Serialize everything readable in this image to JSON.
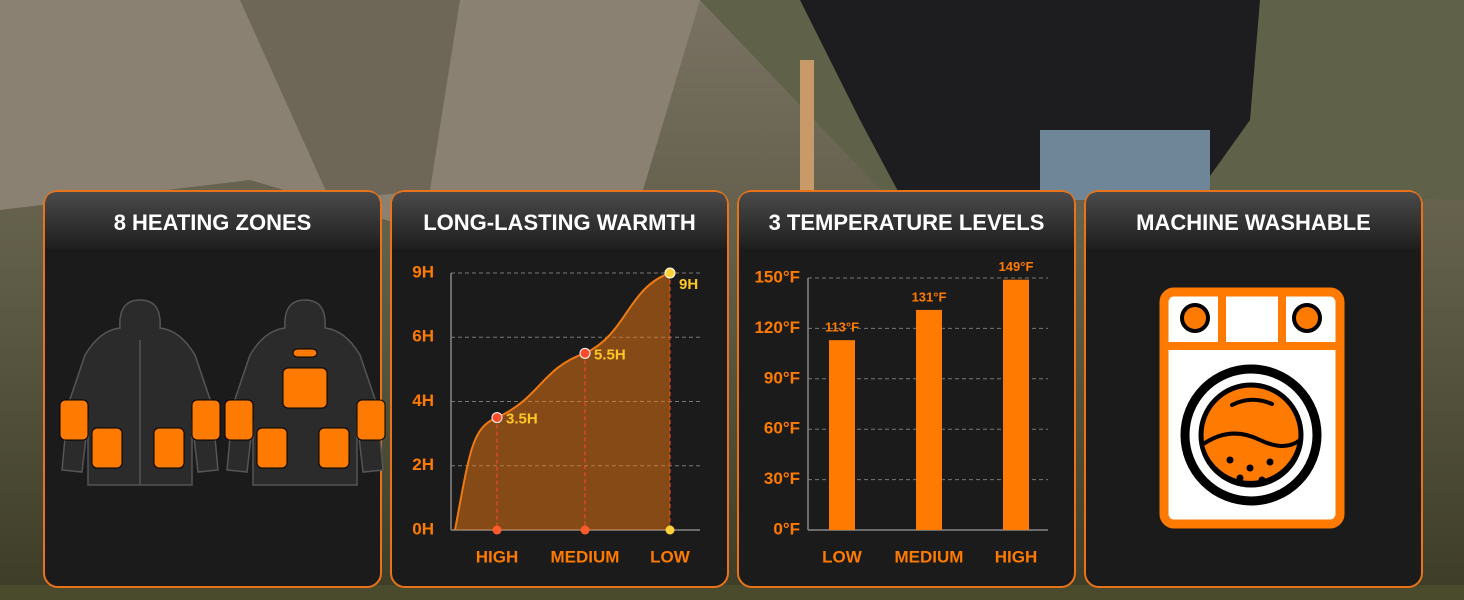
{
  "panels": [
    {
      "title": "8 HEATING ZONES"
    },
    {
      "title": "LONG-LASTING WARMTH"
    },
    {
      "title": "3 TEMPERATURE LEVELS"
    },
    {
      "title": "MACHINE WASHABLE"
    }
  ],
  "chart_data": [
    {
      "type": "area",
      "color": "#f07a12",
      "categories": [
        "HIGH",
        "MEDIUM",
        "LOW"
      ],
      "values": [
        3.5,
        5.5,
        9
      ],
      "value_labels": [
        "3.5H",
        "5.5H",
        "9H"
      ],
      "ylim": [
        0,
        9
      ],
      "yticks": [
        {
          "value": 0,
          "label": "0H"
        },
        {
          "value": 2,
          "label": "2H"
        },
        {
          "value": 4,
          "label": "4H"
        },
        {
          "value": 6,
          "label": "6H"
        },
        {
          "value": 9,
          "label": "9H"
        }
      ],
      "grid": true
    },
    {
      "type": "bar",
      "color": "#ff7a00",
      "categories": [
        "LOW",
        "MEDIUM",
        "HIGH"
      ],
      "values": [
        113,
        131,
        149
      ],
      "value_labels": [
        "113°F",
        "131°F",
        "149°F"
      ],
      "ylim": [
        0,
        150
      ],
      "yticks": [
        {
          "value": 0,
          "label": "0°F"
        },
        {
          "value": 30,
          "label": "30°F"
        },
        {
          "value": 60,
          "label": "60°F"
        },
        {
          "value": 90,
          "label": "90°F"
        },
        {
          "value": 120,
          "label": "120°F"
        },
        {
          "value": 150,
          "label": "150°F"
        }
      ],
      "grid": true
    }
  ]
}
